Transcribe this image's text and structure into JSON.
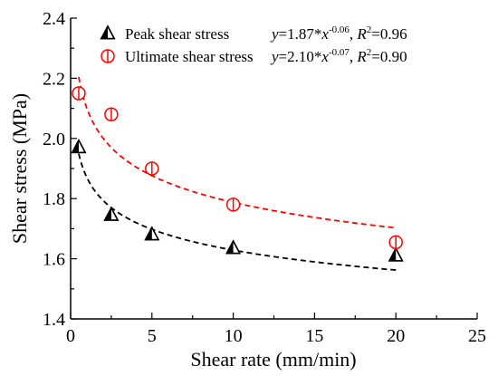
{
  "chart_data": {
    "type": "scatter",
    "xlabel": "Shear rate (mm/min)",
    "ylabel": "Shear stress (MPa)",
    "xlim": [
      0,
      25
    ],
    "ylim": [
      1.4,
      2.4
    ],
    "xticks": [
      "0",
      "5",
      "10",
      "15",
      "20",
      "25"
    ],
    "yticks": [
      "1.4",
      "1.6",
      "1.8",
      "2.0",
      "2.2",
      "2.4"
    ],
    "legend_position": "top-left",
    "grid": false,
    "series": [
      {
        "name": "Peak shear stress",
        "marker": "half-filled-triangle",
        "color": "#000000",
        "x": [
          0.5,
          2.5,
          5,
          10,
          20
        ],
        "y": [
          1.97,
          1.745,
          1.68,
          1.635,
          1.61
        ],
        "fit": {
          "a": 1.87,
          "b": -0.06,
          "color": "#000000",
          "equation_y": "y",
          "equation_mid": "=1.87*",
          "equation_x": "x",
          "equation_exp": "-0.06",
          "equation_r": "R",
          "equation_r_exp": "2",
          "equation_r_val": "=0.96"
        }
      },
      {
        "name": "Ultimate shear stress",
        "marker": "half-filled-circle",
        "color": "#ff0000",
        "x": [
          0.5,
          2.5,
          5,
          10,
          20
        ],
        "y": [
          2.15,
          2.08,
          1.9,
          1.78,
          1.655
        ],
        "fit": {
          "a": 2.1,
          "b": -0.07,
          "color": "#ff0000",
          "equation_y": "y",
          "equation_mid": "=2.10*",
          "equation_x": "x",
          "equation_exp": "-0.07",
          "equation_r": "R",
          "equation_r_exp": "2",
          "equation_r_val": "=0.90"
        }
      }
    ]
  }
}
